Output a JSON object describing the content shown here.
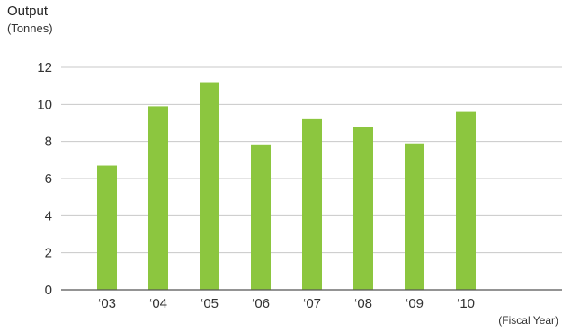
{
  "chart_data": {
    "type": "bar",
    "ylabel": "Output",
    "yunit": "(Tonnes)",
    "xlabel": "(Fiscal Year)",
    "categories": [
      "‘03",
      "‘04",
      "‘05",
      "‘06",
      "‘07",
      "‘08",
      "‘09",
      "‘10"
    ],
    "values": [
      6.7,
      9.9,
      11.2,
      7.8,
      9.2,
      8.8,
      7.9,
      9.6
    ],
    "ylim": [
      0,
      12
    ],
    "yticks": [
      0,
      2,
      4,
      6,
      8,
      10,
      12
    ],
    "grid": true,
    "bar_color": "#8cc63f",
    "grid_color": "#c8c8c8",
    "axis_color": "#555555"
  }
}
